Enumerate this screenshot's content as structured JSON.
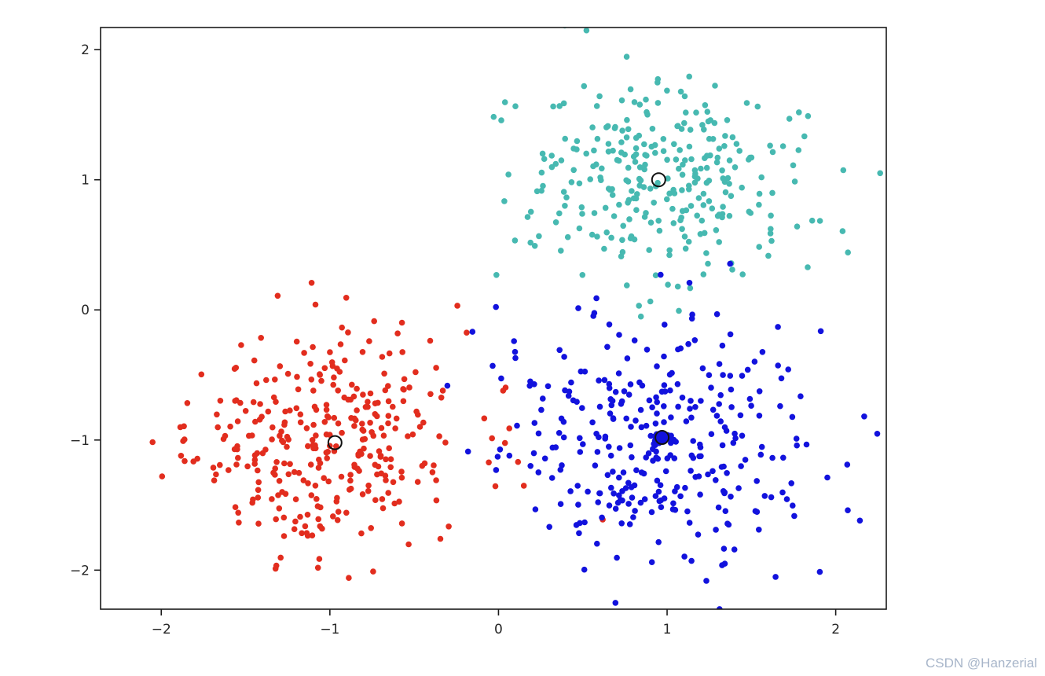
{
  "watermark": "CSDN @Hanzerial",
  "chart_data": {
    "type": "scatter",
    "title": "",
    "xlabel": "",
    "ylabel": "",
    "xlim": [
      -2.36,
      2.3
    ],
    "ylim": [
      -2.3,
      2.17
    ],
    "xtick_values": [
      -2,
      -1,
      0,
      1,
      2
    ],
    "xtick_labels": [
      "−2",
      "−1",
      "0",
      "1",
      "2"
    ],
    "ytick_values": [
      -2,
      -1,
      0,
      1,
      2
    ],
    "ytick_labels": [
      "−2",
      "−1",
      "0",
      "1",
      "2"
    ],
    "grid": false,
    "legend": "none",
    "background_color": "#ffffff",
    "frame_color": "#1a1a1a",
    "point_radius": 3.8,
    "series": [
      {
        "name": "cluster-teal",
        "color": "#47b9b1",
        "center": [
          0.97,
          1.0
        ],
        "std": 0.4,
        "count": 300,
        "seed": 1013
      },
      {
        "name": "cluster-red",
        "color": "#e22d1e",
        "center": [
          -0.98,
          -1.02
        ],
        "std": 0.43,
        "count": 330,
        "seed": 2027
      },
      {
        "name": "cluster-blue",
        "color": "#1212dd",
        "center": [
          0.98,
          -1.0
        ],
        "std": 0.46,
        "count": 330,
        "seed": 3041
      }
    ],
    "centroids": [
      {
        "x": 0.95,
        "y": 1.0,
        "fill": "none",
        "edge": "#111111"
      },
      {
        "x": -0.97,
        "y": -1.02,
        "fill": "none",
        "edge": "#111111"
      },
      {
        "x": 0.97,
        "y": -0.98,
        "fill": "#1212dd",
        "edge": "#111111"
      }
    ],
    "centroid_radius": 8.5
  }
}
